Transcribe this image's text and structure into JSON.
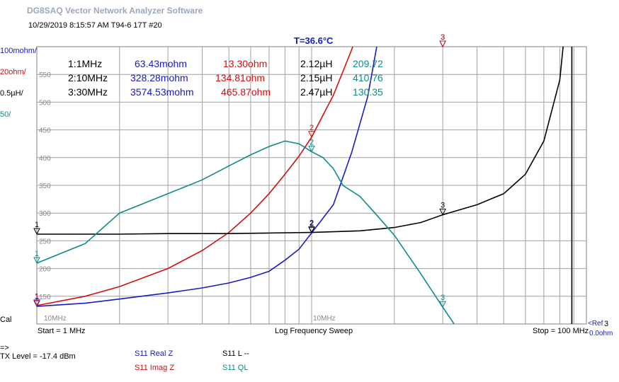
{
  "app": {
    "title": "DG8SAQ Vector Network Analyzer Software"
  },
  "timestamp": "10/29/2019  8:15:57 AM   T94-6 17T #20",
  "temperature": "T=36.6°C",
  "scales": [
    {
      "text": "100mohm/",
      "color": "#1a1abf"
    },
    {
      "text": "20ohm/",
      "color": "#d01010"
    },
    {
      "text": "0.5µH/",
      "color": "#000000"
    },
    {
      "text": "50/",
      "color": "#108a8a"
    }
  ],
  "cal_label": "Cal",
  "start_label": "Start = 1 MHz",
  "sweep_label": "Log Frequency Sweep",
  "stop_label": "Stop = 100 MHz",
  "tick_10mhz": "10MHz",
  "tick_bottom_left": "10MHz",
  "ref_label": "<Ref",
  "ref_label2": "0.0ohm",
  "ref_num": "3",
  "tx": {
    "arrow": "=>",
    "level": "TX Level = -17.4 dBm"
  },
  "legend": [
    {
      "text": "S11  Real Z",
      "color": "#1a1abf"
    },
    {
      "text": "S11  Imag Z",
      "color": "#d01010"
    },
    {
      "text": "S11  L --",
      "color": "#000000"
    },
    {
      "text": "S11  QL",
      "color": "#108a8a"
    }
  ],
  "markers": [
    {
      "id": "1:",
      "freq": "1MHz",
      "real": "63.43mohm",
      "imag": "13.30ohm",
      "ind": "2.12µH",
      "q": "209.72"
    },
    {
      "id": "2:",
      "freq": "10MHz",
      "real": "328.28mohm",
      "imag": "134.81ohm",
      "ind": "2.15µH",
      "q": "410.76"
    },
    {
      "id": "3:",
      "freq": "30MHz",
      "real": "3574.53mohm",
      "imag": "465.87ohm",
      "ind": "2.47µH",
      "q": "130.35"
    }
  ],
  "colors": {
    "real": "#1a1abf",
    "imag": "#d01010",
    "ind": "#000000",
    "q": "#108a8a",
    "grid": "#a0a0a0"
  },
  "chart_data": {
    "type": "line",
    "xscale": "log",
    "xlim": [
      1,
      100
    ],
    "x_unit": "MHz",
    "ylim_q": [
      100,
      600
    ],
    "y_ticks_q": [
      "150",
      "200",
      "250",
      "300",
      "350",
      "400",
      "450",
      "500",
      "550"
    ],
    "series": [
      {
        "name": "S11  Real Z",
        "unit": "mohm",
        "x": [
          1,
          1.5,
          2,
          3,
          4,
          5,
          6,
          7,
          8,
          9,
          10,
          12,
          14,
          16,
          18,
          20,
          22,
          25,
          28,
          30
        ],
        "values": [
          63.43,
          75,
          90,
          112,
          130,
          148,
          168,
          190,
          230,
          270,
          328.28,
          430,
          620,
          820,
          1100,
          1500,
          1950,
          2500,
          3100,
          3574.53
        ]
      },
      {
        "name": "S11  Imag Z",
        "unit": "ohm",
        "x": [
          1,
          1.5,
          2,
          3,
          4,
          5,
          6,
          7,
          8,
          9,
          10,
          12,
          14,
          16,
          18,
          20,
          22,
          25,
          28,
          30
        ],
        "values": [
          13.3,
          20,
          27,
          40,
          53,
          66,
          80,
          94,
          108,
          121,
          134.81,
          165,
          198,
          232,
          268,
          306,
          345,
          400,
          445,
          465.87
        ]
      },
      {
        "name": "S11  L --",
        "unit": "µH",
        "x": [
          1,
          2,
          3,
          5,
          7,
          10,
          15,
          20,
          25,
          30,
          40,
          50,
          60,
          70,
          80,
          85,
          89
        ],
        "values": [
          2.12,
          2.12,
          2.13,
          2.13,
          2.14,
          2.15,
          2.18,
          2.24,
          2.33,
          2.47,
          2.65,
          2.85,
          3.2,
          3.8,
          4.9,
          6.2,
          8.0
        ]
      },
      {
        "name": "S11  QL",
        "unit": "",
        "x": [
          1,
          1.5,
          2,
          3,
          4,
          5,
          6,
          7,
          8,
          9,
          10,
          11,
          12,
          13,
          15,
          17,
          20,
          25,
          30,
          33
        ],
        "values": [
          209.72,
          245,
          300,
          335,
          360,
          385,
          405,
          420,
          430,
          425,
          410.76,
          400,
          380,
          350,
          330,
          300,
          260,
          190,
          130.35,
          100
        ]
      }
    ]
  }
}
